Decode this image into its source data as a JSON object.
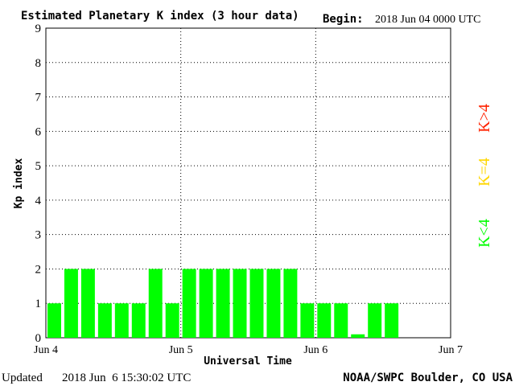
{
  "header": {
    "title": "Estimated Planetary K index (3 hour data)",
    "begin_label": "Begin:",
    "begin_value": "2018 Jun 04 0000 UTC"
  },
  "footer": {
    "updated_label": "Updated",
    "updated_value": "2018 Jun  6 15:30:02 UTC",
    "source": "NOAA/SWPC Boulder, CO USA"
  },
  "legend": {
    "above": "K>4",
    "equal": "K=4",
    "below": "K<4"
  },
  "chart_data": {
    "type": "bar",
    "xlabel": "Universal Time",
    "ylabel": "Kp index",
    "x_ticks": [
      "Jun 4",
      "Jun 5",
      "Jun 6",
      "Jun 7"
    ],
    "y_ticks": [
      "0",
      "1",
      "2",
      "3",
      "4",
      "5",
      "6",
      "7",
      "8",
      "9"
    ],
    "ylim": [
      0,
      9
    ],
    "xlim_intervals": 24,
    "grid": "dotted",
    "colors": {
      "below4": "#00ff00",
      "equal4": "#ffd700",
      "above4": "#ff2200"
    },
    "values": [
      1,
      2,
      2,
      1,
      1,
      1,
      2,
      1,
      2,
      2,
      2,
      2,
      2,
      2,
      2,
      1,
      1,
      1,
      0.1,
      1,
      1
    ]
  }
}
